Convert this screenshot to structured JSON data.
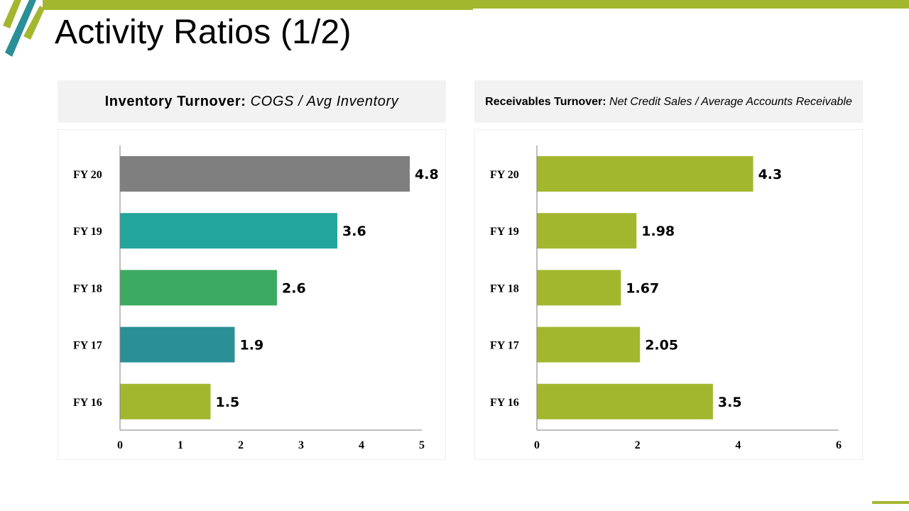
{
  "title": "Activity Ratios (1/2)",
  "colors": {
    "accent_green": "#a3b72e",
    "teal_dark": "#2b8f97",
    "grey": "#7f7f7f"
  },
  "left_panel": {
    "header_bold": "Inventory Turnover:",
    "header_italic": " COGS / Avg Inventory"
  },
  "right_panel": {
    "header_bold": "Receivables Turnover:",
    "header_italic": " Net Credit Sales / Average Accounts Receivable"
  },
  "chart_data": [
    {
      "type": "bar",
      "orientation": "horizontal",
      "categories": [
        "FY 20",
        "FY 19",
        "FY 18",
        "FY 17",
        "FY 16"
      ],
      "values": [
        4.8,
        3.6,
        2.6,
        1.9,
        1.5
      ],
      "value_labels": [
        "4.8",
        "3.6",
        "2.6",
        "1.9",
        "1.5"
      ],
      "bar_colors": [
        "#7f7f7f",
        "#22a59a",
        "#3daa61",
        "#2b8f97",
        "#a3b72e"
      ],
      "xlim": [
        0,
        5
      ],
      "xticks": [
        0,
        1,
        2,
        3,
        4,
        5
      ],
      "grid": false
    },
    {
      "type": "bar",
      "orientation": "horizontal",
      "categories": [
        "FY 20",
        "FY 19",
        "FY 18",
        "FY 17",
        "FY 16"
      ],
      "values": [
        4.3,
        1.98,
        1.67,
        2.05,
        3.5
      ],
      "value_labels": [
        "4.3",
        "1.98",
        "1.67",
        "2.05",
        "3.5"
      ],
      "bar_colors": [
        "#a3b72e",
        "#a3b72e",
        "#a3b72e",
        "#a3b72e",
        "#a3b72e"
      ],
      "xlim": [
        0,
        6
      ],
      "xticks": [
        0,
        2,
        4,
        6
      ],
      "grid": false
    }
  ]
}
